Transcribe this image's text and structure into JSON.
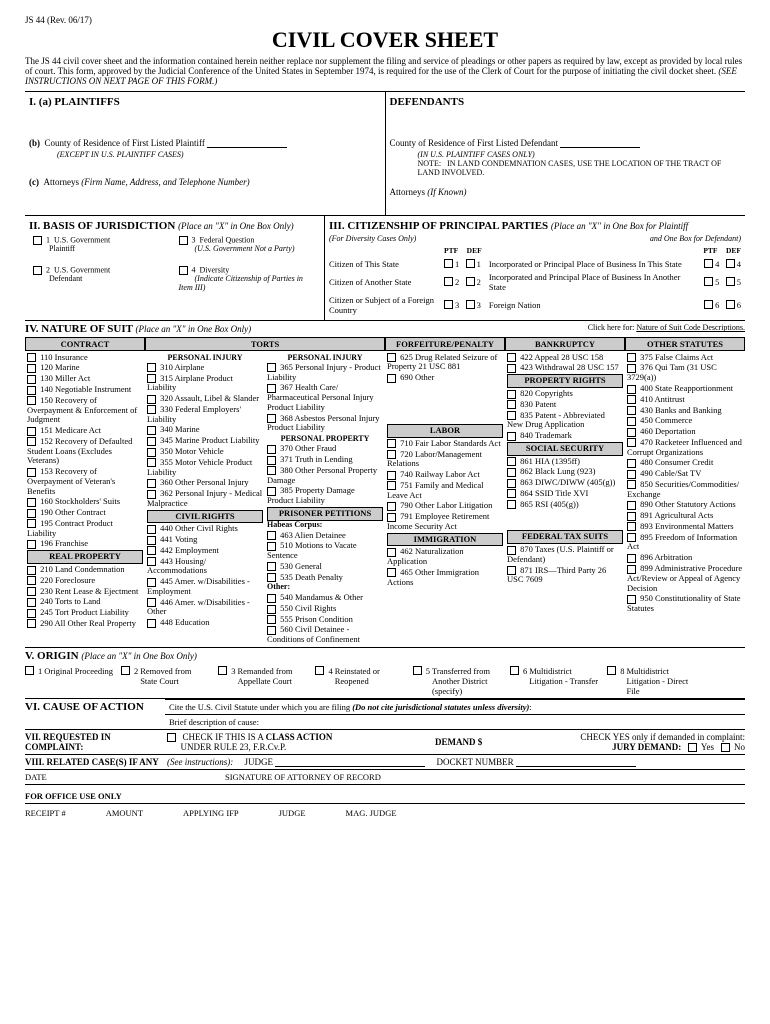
{
  "form_id": "JS 44   (Rev. 06/17)",
  "title": "CIVIL COVER SHEET",
  "intro": "The JS 44 civil cover sheet and the information contained herein neither replace nor supplement the filing and service of pleadings or other papers as required by law,  except as provided by local rules of court.  This form, approved by the Judicial Conference of the United States in September 1974, is required for the use of the Clerk of Court for the purpose of initiating the civil docket sheet.",
  "intro_instr": "(SEE INSTRUCTIONS ON NEXT PAGE OF THIS FORM.)",
  "s1": {
    "hdr_a": "I. (a)  PLAINTIFFS",
    "hdr_def": "DEFENDANTS",
    "b_label": "County of Residence of First Listed Plaintiff",
    "b_note": "(EXCEPT IN U.S. PLAINTIFF CASES)",
    "def_b": "County of Residence of First Listed Defendant",
    "def_b_note": "(IN U.S. PLAINTIFF CASES ONLY)",
    "note_hdr": "NOTE:",
    "note_txt": "IN LAND CONDEMNATION CASES, USE THE LOCATION OF THE TRACT OF LAND INVOLVED.",
    "c_label": "Attorneys",
    "c_sub": "(Firm Name, Address, and Telephone Number)",
    "def_c": "Attorneys",
    "def_c_sub": "(If Known)"
  },
  "s2": {
    "hdr": "II.  BASIS OF JURISDICTION",
    "sub": "(Place an \"X\" in One Box Only)",
    "items": [
      {
        "n": "1",
        "t": "U.S. Government",
        "d": "Plaintiff"
      },
      {
        "n": "3",
        "t": "Federal Question",
        "d": "(U.S. Government Not a Party)"
      },
      {
        "n": "2",
        "t": "U.S. Government",
        "d": "Defendant"
      },
      {
        "n": "4",
        "t": "Diversity",
        "d": "(Indicate Citizenship of Parties in Item III)"
      }
    ]
  },
  "s3": {
    "hdr": "III.  CITIZENSHIP OF PRINCIPAL PARTIES",
    "sub": "(Place an \"X\" in One Box for Plaintiff",
    "sub2": "(For Diversity Cases Only)",
    "sub3": "and One Box for Defendant)",
    "ptf": "PTF",
    "def": "DEF",
    "rows": [
      {
        "l": "Citizen of This State",
        "n": "1",
        "r": "Incorporated or Principal Place of Business In This State",
        "rn": "4"
      },
      {
        "l": "Citizen of Another State",
        "n": "2",
        "r": "Incorporated and Principal Place of Business In Another State",
        "rn": "5"
      },
      {
        "l": "Citizen or Subject of a Foreign Country",
        "n": "3",
        "r": "Foreign Nation",
        "rn": "6"
      }
    ]
  },
  "s4": {
    "hdr": "IV.  NATURE OF SUIT",
    "sub": "(Place an \"X\" in One Box Only)",
    "link_pre": "Click here for: ",
    "link": "Nature of Suit Code Descriptions.",
    "cats": [
      "CONTRACT",
      "TORTS",
      "FORFEITURE/PENALTY",
      "BANKRUPTCY",
      "OTHER STATUTES"
    ],
    "contract": [
      "110 Insurance",
      "120 Marine",
      "130 Miller Act",
      "140 Negotiable Instrument",
      "150 Recovery of Overpayment & Enforcement of Judgment",
      "151 Medicare Act",
      "152 Recovery of Defaulted Student Loans (Excludes Veterans)",
      "153 Recovery of Overpayment of Veteran's Benefits",
      "160 Stockholders' Suits",
      "190 Other Contract",
      "195 Contract Product Liability",
      "196 Franchise"
    ],
    "real_prop_hdr": "REAL PROPERTY",
    "real_prop": [
      "210 Land Condemnation",
      "220 Foreclosure",
      "230 Rent Lease & Ejectment",
      "240 Torts to Land",
      "245 Tort Product Liability",
      "290 All Other Real Property"
    ],
    "pi1_hdr": "PERSONAL INJURY",
    "pi1": [
      "310 Airplane",
      "315 Airplane Product Liability",
      "320 Assault, Libel & Slander",
      "330 Federal Employers' Liability",
      "340 Marine",
      "345 Marine Product Liability",
      "350 Motor Vehicle",
      "355 Motor Vehicle Product Liability",
      "360 Other Personal Injury",
      "362 Personal Injury - Medical Malpractice"
    ],
    "cr_hdr": "CIVIL RIGHTS",
    "cr": [
      "440 Other Civil Rights",
      "441 Voting",
      "442 Employment",
      "443 Housing/ Accommodations",
      "445 Amer. w/Disabilities - Employment",
      "446 Amer. w/Disabilities - Other",
      "448 Education"
    ],
    "pi2_hdr": "PERSONAL INJURY",
    "pi2": [
      "365 Personal Injury  - Product Liability",
      "367 Health Care/ Pharmaceutical Personal Injury Product Liability",
      "368 Asbestos Personal Injury Product Liability"
    ],
    "pp_hdr": "PERSONAL PROPERTY",
    "pp": [
      "370 Other Fraud",
      "371 Truth in Lending",
      "380 Other Personal Property Damage",
      "385 Property Damage Product Liability"
    ],
    "pris_hdr": "PRISONER PETITIONS",
    "hab": "Habeas Corpus:",
    "pris1": [
      "463 Alien Detainee",
      "510 Motions to Vacate Sentence",
      "530 General",
      "535 Death Penalty"
    ],
    "other_hdr": "Other:",
    "pris2": [
      "540 Mandamus & Other",
      "550 Civil Rights",
      "555 Prison Condition",
      "560 Civil Detainee - Conditions of Confinement"
    ],
    "forf": [
      "625 Drug Related Seizure of Property 21 USC 881",
      "690 Other"
    ],
    "labor_hdr": "LABOR",
    "labor": [
      "710 Fair Labor Standards Act",
      "720 Labor/Management Relations",
      "740 Railway Labor Act",
      "751 Family and Medical Leave Act",
      "790 Other Labor Litigation",
      "791 Employee Retirement Income Security Act"
    ],
    "imm_hdr": "IMMIGRATION",
    "imm": [
      "462 Naturalization Application",
      "465 Other Immigration Actions"
    ],
    "bank": [
      "422 Appeal 28 USC 158",
      "423 Withdrawal 28 USC 157"
    ],
    "prop_hdr": "PROPERTY RIGHTS",
    "prop": [
      "820 Copyrights",
      "830 Patent",
      "835 Patent - Abbreviated New Drug Application",
      "840 Trademark"
    ],
    "ss_hdr": "SOCIAL SECURITY",
    "ss": [
      "861 HIA (1395ff)",
      "862 Black Lung (923)",
      "863 DIWC/DIWW (405(g))",
      "864 SSID Title XVI",
      "865 RSI (405(g))"
    ],
    "tax_hdr": "FEDERAL TAX SUITS",
    "tax": [
      "870 Taxes (U.S. Plaintiff or Defendant)",
      "871 IRS—Third Party 26 USC 7609"
    ],
    "other": [
      "375 False Claims Act",
      "376 Qui Tam (31 USC 3729(a))",
      "400 State Reapportionment",
      "410 Antitrust",
      "430 Banks and Banking",
      "450 Commerce",
      "460 Deportation",
      "470 Racketeer Influenced and Corrupt Organizations",
      "480 Consumer Credit",
      "490 Cable/Sat TV",
      "850 Securities/Commodities/ Exchange",
      "890 Other Statutory Actions",
      "891 Agricultural Acts",
      "893 Environmental Matters",
      "895 Freedom of Information Act",
      "896 Arbitration",
      "899 Administrative Procedure Act/Review or Appeal of Agency Decision",
      "950 Constitutionality of State Statutes"
    ]
  },
  "s5": {
    "hdr": "V.  ORIGIN",
    "sub": "(Place an \"X\" in One Box Only)",
    "items": [
      {
        "n": "1",
        "t": "Original Proceeding"
      },
      {
        "n": "2",
        "t": "Removed from State Court"
      },
      {
        "n": "3",
        "t": "Remanded from Appellate Court"
      },
      {
        "n": "4",
        "t": "Reinstated or Reopened"
      },
      {
        "n": "5",
        "t": "Transferred from Another District (specify)"
      },
      {
        "n": "6",
        "t": "Multidistrict Litigation - Transfer"
      },
      {
        "n": "8",
        "t": "Multidistrict Litigation - Direct File"
      }
    ]
  },
  "s6": {
    "hdr": "VI.  CAUSE OF ACTION",
    "l1": "Cite the U.S. Civil Statute under which you are filing",
    "l1b": "(Do not cite jurisdictional statutes unless diversity)",
    "l2": "Brief description of cause:"
  },
  "s7": {
    "hdr": "VII.  REQUESTED IN COMPLAINT:",
    "chk": "CHECK IF THIS IS A",
    "cls": "CLASS ACTION",
    "rule": "UNDER RULE 23, F.R.Cv.P.",
    "dem": "DEMAND $",
    "chkyes": "CHECK YES only if demanded in complaint:",
    "jury": "JURY DEMAND:",
    "yes": "Yes",
    "no": "No"
  },
  "s8": {
    "hdr": "VIII.  RELATED CASE(S) IF ANY",
    "see": "(See instructions):",
    "judge": "JUDGE",
    "docket": "DOCKET NUMBER"
  },
  "sig": {
    "date": "DATE",
    "sig": "SIGNATURE OF ATTORNEY OF RECORD"
  },
  "office": {
    "hdr": "FOR OFFICE USE ONLY",
    "items": [
      "RECEIPT #",
      "AMOUNT",
      "APPLYING IFP",
      "JUDGE",
      "MAG. JUDGE"
    ]
  }
}
